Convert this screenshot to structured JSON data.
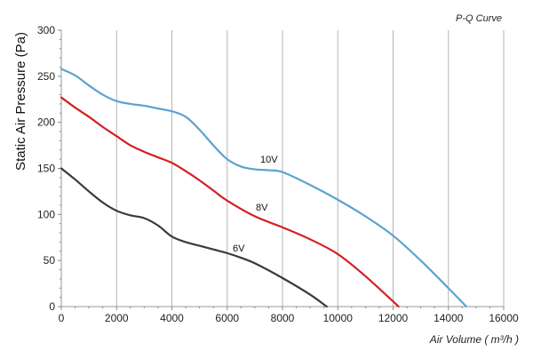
{
  "chart_data": {
    "type": "line",
    "title": "P-Q Curve",
    "xlabel": "Air Volume ( m³/h )",
    "ylabel": "Static Air Pressure  (Pa)",
    "xlim": [
      0,
      16000
    ],
    "ylim": [
      0,
      300
    ],
    "xticks": [
      0,
      2000,
      4000,
      6000,
      8000,
      10000,
      12000,
      14000,
      16000
    ],
    "yticks": [
      0,
      50,
      100,
      150,
      200,
      250,
      300
    ],
    "grid": "vertical",
    "colors": {
      "10V": "#5ba3d0",
      "8V": "#d42020",
      "6V": "#3a3a3a"
    },
    "series": [
      {
        "name": "10V",
        "x": [
          0,
          500,
          1000,
          1500,
          2000,
          2500,
          3000,
          3500,
          4000,
          4500,
          5000,
          5500,
          6000,
          6500,
          7000,
          7500,
          8000,
          9000,
          10000,
          11000,
          12000,
          13000,
          14000,
          14650
        ],
        "y": [
          258,
          251,
          240,
          230,
          223,
          220,
          218,
          215,
          212,
          206,
          192,
          175,
          160,
          152,
          149,
          148,
          146,
          132,
          116,
          98,
          77,
          50,
          20,
          0
        ]
      },
      {
        "name": "8V",
        "x": [
          0,
          500,
          1000,
          1500,
          2000,
          2500,
          3000,
          3500,
          4000,
          4500,
          5000,
          5500,
          6000,
          7000,
          8000,
          9000,
          10000,
          11000,
          12200
        ],
        "y": [
          227,
          216,
          206,
          195,
          185,
          175,
          168,
          162,
          156,
          147,
          137,
          126,
          115,
          98,
          86,
          73,
          57,
          33,
          0
        ]
      },
      {
        "name": "6V",
        "x": [
          0,
          500,
          1000,
          1500,
          2000,
          2500,
          3000,
          3500,
          4000,
          4500,
          5000,
          5500,
          6000,
          6500,
          7000,
          8000,
          9000,
          9600
        ],
        "y": [
          150,
          138,
          125,
          113,
          104,
          99,
          96,
          88,
          76,
          70,
          66,
          62,
          58,
          53,
          47,
          31,
          13,
          0
        ]
      }
    ]
  }
}
